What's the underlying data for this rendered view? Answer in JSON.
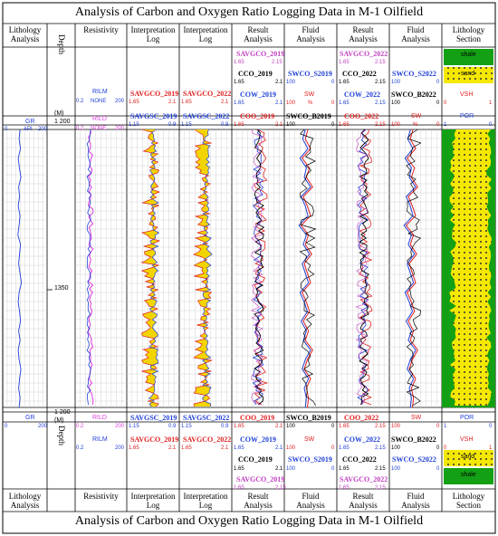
{
  "title": "Analysis of Carbon and Oxygen Ratio Logging Data in M-1 Oilfield",
  "columns": [
    {
      "key": "lith",
      "label": "Lithology\nAnalysis"
    },
    {
      "key": "depth",
      "label": "Depth"
    },
    {
      "key": "res",
      "label": "Resistivity"
    },
    {
      "key": "int1",
      "label": "Interpretation\nLog"
    },
    {
      "key": "int2",
      "label": "Interpretation\nLog"
    },
    {
      "key": "res1",
      "label": "Result\nAnalysis"
    },
    {
      "key": "flu1",
      "label": "Fluid\nAnalysis"
    },
    {
      "key": "res2",
      "label": "Result\nAnalysis"
    },
    {
      "key": "flu2",
      "label": "Fluid\nAnalysis"
    },
    {
      "key": "sec",
      "label": "Lithology\nSection"
    }
  ],
  "depth_unit": "(M)",
  "depth_label": "Depth",
  "track_labels": {
    "gr": {
      "name": "GR",
      "unit": "API",
      "min": "0",
      "max": "200",
      "color": "#1f3fd8"
    },
    "rilm": {
      "name": "RILM",
      "unit": "NONE",
      "min": "0.2",
      "max": "200",
      "color": "#1f3fd8"
    },
    "rild": {
      "name": "RILD",
      "unit": "NONE",
      "min": "0.2",
      "max": "200",
      "color": "#e040e0"
    },
    "savgco19": {
      "name": "SAVGCO_2019",
      "min": "1.65",
      "max": "2.1",
      "color": "#e02020"
    },
    "savgsc19": {
      "name": "SAVGSC_2019",
      "min": "1.15",
      "max": "0.9",
      "color": "#1f3fd8"
    },
    "savgco22": {
      "name": "SAVGCO_2022",
      "min": "1.65",
      "max": "2.1",
      "color": "#e02020"
    },
    "savgsc22": {
      "name": "SAVGSC_2022",
      "min": "1.15",
      "max": "0.9",
      "color": "#1f3fd8"
    },
    "r1_savgco": {
      "name": "SAVGCO_2019",
      "min": "1.65",
      "max": "2.15",
      "color": "#c040c0"
    },
    "r1_cco": {
      "name": "CCO_2019",
      "min": "1.65",
      "max": "2.1",
      "color": "#000000"
    },
    "r1_cow": {
      "name": "COW_2019",
      "min": "1.65",
      "max": "2.1",
      "color": "#1f3fd8"
    },
    "r1_coo": {
      "name": "COO_2019",
      "min": "1.65",
      "max": "2.1",
      "color": "#e02020"
    },
    "f1_swco": {
      "name": "SWCO_S2019",
      "min": "100",
      "max": "0",
      "color": "#1f3fd8"
    },
    "f1_sw": {
      "name": "SW",
      "min": "100",
      "max": "0",
      "unit": "%",
      "color": "#e02020"
    },
    "f1_b": {
      "name": "SWCO_B2019",
      "min": "100",
      "max": "0",
      "color": "#000000"
    },
    "r2_savgco": {
      "name": "SAVGCO_2022",
      "min": "1.65",
      "max": "2.15",
      "color": "#c040c0"
    },
    "r2_cco": {
      "name": "CCO_2022",
      "min": "1.65",
      "max": "2.15",
      "color": "#000000"
    },
    "r2_cow": {
      "name": "COW_2022",
      "min": "1.65",
      "max": "2.15",
      "color": "#1f3fd8"
    },
    "r2_coo": {
      "name": "COO_2022",
      "min": "1.65",
      "max": "2.15",
      "color": "#e02020"
    },
    "f2_swco": {
      "name": "SWCO_S2022",
      "min": "100",
      "max": "0",
      "color": "#1f3fd8"
    },
    "f2_b": {
      "name": "SWCO_B2022",
      "min": "100",
      "max": "0",
      "color": "#000000"
    },
    "f2_sw": {
      "name": "SW",
      "min": "100",
      "max": "0",
      "unit": "%",
      "color": "#e02020"
    },
    "vsh": {
      "name": "VSH",
      "min": "0",
      "max": "1",
      "color": "#e02020"
    },
    "por": {
      "name": "POR",
      "min": "1",
      "max": "0",
      "color": "#1f3fd8"
    },
    "shale": "shale",
    "sand": "sand"
  },
  "depth_ticks": [
    "1350"
  ],
  "depth_top": "1 200",
  "depth_bottom": "1 200",
  "colors": {
    "sand": "#f5e800",
    "shale": "#14a014",
    "grid": "#c8c8c8"
  },
  "chart_data": {
    "type": "line",
    "title": "Analysis of Carbon and Oxygen Ratio Logging Data in M-1 Oilfield",
    "ylabel": "Depth (M)",
    "depth_range": [
      1200,
      1450
    ],
    "y_tick_labels": [
      "1350"
    ],
    "grid": true,
    "series": [
      {
        "name": "GR",
        "track": "Lithology Analysis",
        "range": [
          0,
          200
        ],
        "values": [
          78,
          74,
          80,
          70,
          75,
          82,
          72,
          76,
          70,
          78,
          74,
          68,
          80,
          76,
          72,
          78,
          84,
          74,
          70,
          76,
          80,
          72,
          78,
          70,
          74,
          82,
          76,
          72,
          78,
          74
        ]
      },
      {
        "name": "RILM",
        "track": "Resistivity",
        "range": [
          0.2,
          200
        ],
        "log": true,
        "values": [
          8,
          7,
          9,
          6,
          8,
          7,
          9,
          8,
          7,
          6,
          8,
          9,
          7,
          8,
          6,
          7,
          9,
          8,
          7,
          8,
          6,
          7,
          9,
          8,
          7,
          8,
          9,
          7,
          8,
          7
        ]
      },
      {
        "name": "RILD",
        "track": "Resistivity",
        "range": [
          0.2,
          200
        ],
        "log": true,
        "values": [
          9,
          8,
          10,
          7,
          9,
          8,
          10,
          9,
          8,
          7,
          9,
          10,
          8,
          9,
          7,
          8,
          10,
          9,
          8,
          9,
          7,
          8,
          10,
          9,
          8,
          9,
          10,
          8,
          9,
          8
        ]
      },
      {
        "name": "SWCO_S2019",
        "track": "Fluid Analysis",
        "range": [
          100,
          0
        ],
        "values": [
          60,
          65,
          55,
          70,
          58,
          62,
          50,
          68,
          60,
          55,
          72,
          58,
          64,
          52,
          66,
          60,
          54,
          70,
          62,
          56,
          68,
          58,
          64,
          50,
          60,
          66,
          54,
          62,
          58,
          60
        ]
      },
      {
        "name": "SW",
        "track": "Fluid Analysis",
        "range": [
          100,
          0
        ],
        "values": [
          55,
          60,
          50,
          66,
          52,
          58,
          46,
          64,
          56,
          50,
          68,
          54,
          60,
          48,
          62,
          56,
          50,
          66,
          58,
          52,
          64,
          54,
          60,
          46,
          56,
          62,
          50,
          58,
          54,
          56
        ]
      }
    ]
  }
}
